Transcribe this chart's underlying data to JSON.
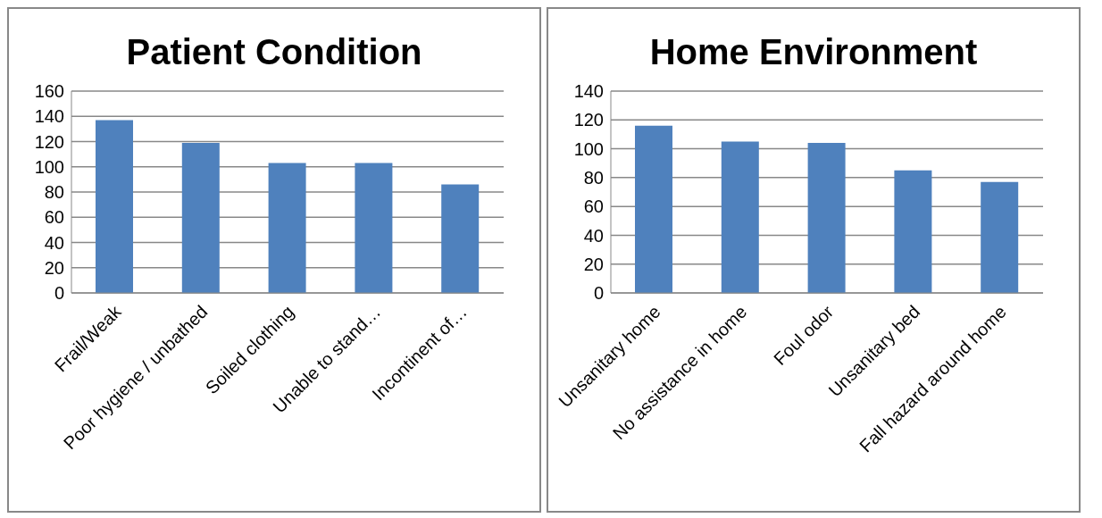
{
  "chart_data": [
    {
      "type": "bar",
      "title": "Patient Condition",
      "categories": [
        "Frail/Weak",
        "Poor hygiene / unbathed",
        "Soiled clothing",
        "Unable to stand…",
        "Incontinent of…"
      ],
      "values": [
        137,
        119,
        103,
        103,
        86
      ],
      "color": "#4f81bd",
      "ylim": [
        0,
        160
      ],
      "yticks": [
        0,
        20,
        40,
        60,
        80,
        100,
        120,
        140,
        160
      ],
      "grid": "y"
    },
    {
      "type": "bar",
      "title": "Home Environment",
      "categories": [
        "Unsanitary home",
        "No assistance in home",
        "Foul odor",
        "Unsanitary bed",
        "Fall hazard around home"
      ],
      "values": [
        116,
        105,
        104,
        85,
        77
      ],
      "color": "#4f81bd",
      "ylim": [
        0,
        140
      ],
      "yticks": [
        0,
        20,
        40,
        60,
        80,
        100,
        120,
        140
      ],
      "grid": "y"
    }
  ]
}
